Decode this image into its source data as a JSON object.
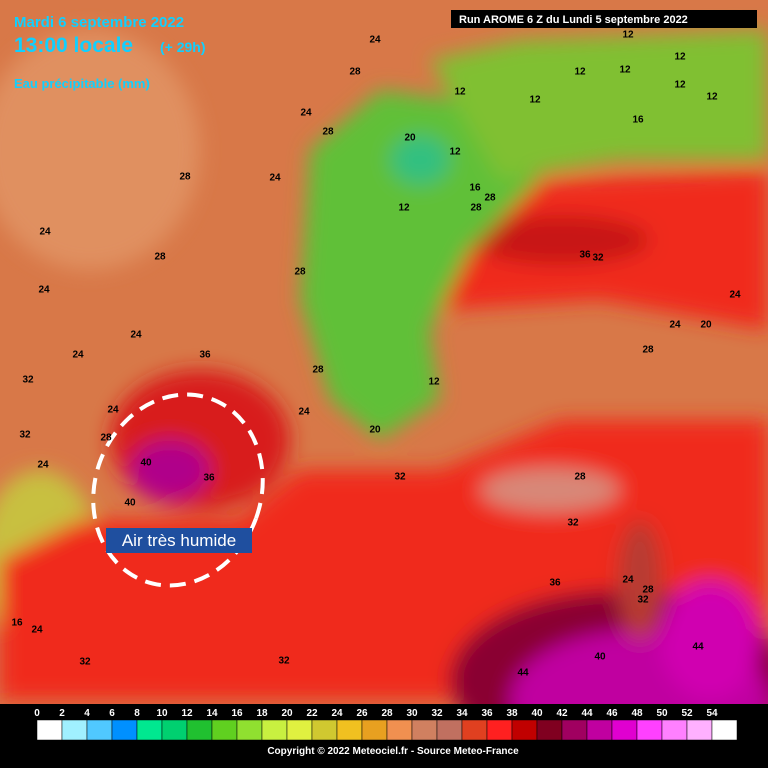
{
  "header": {
    "date": "Mardi 6 septembre 2022",
    "time": "13:00 locale",
    "lead": "(+ 29h)",
    "field": "Eau précipitable (mm)",
    "run": "Run AROME 6 Z du Lundi 5 septembre 2022"
  },
  "annotation": "Air très humide",
  "map_labels": [
    24,
    12,
    28,
    12,
    12,
    12,
    12,
    12,
    12,
    16,
    12,
    24,
    28,
    20,
    12,
    28,
    24,
    12,
    16,
    28,
    28,
    24,
    28,
    28,
    36,
    32,
    24,
    24,
    24,
    20,
    24,
    36,
    24,
    28,
    32,
    28,
    12,
    24,
    24,
    32,
    28,
    20,
    24,
    40,
    36,
    32,
    40,
    28,
    32,
    36,
    24,
    28,
    32,
    16,
    24,
    44,
    40,
    32,
    32,
    44
  ],
  "legend": {
    "ticks": [
      0,
      2,
      4,
      6,
      8,
      10,
      12,
      14,
      16,
      18,
      20,
      22,
      24,
      26,
      28,
      30,
      32,
      34,
      36,
      38,
      40,
      42,
      44,
      46,
      48,
      50,
      52,
      54
    ],
    "colors": [
      "#ffffff",
      "#a0f0ff",
      "#50c8ff",
      "#0090ff",
      "#00e890",
      "#00d070",
      "#20c030",
      "#60d020",
      "#90e030",
      "#c8f040",
      "#e0f040",
      "#d0c830",
      "#f0c020",
      "#e8a020",
      "#f09050",
      "#d08060",
      "#c07060",
      "#e04020",
      "#ff2020",
      "#c00000",
      "#800020",
      "#a00060",
      "#c000a0",
      "#e000d0",
      "#ff40ff",
      "#ff80ff",
      "#ffb0ff",
      "#ffffff"
    ]
  },
  "footer": "Copyright © 2022 Meteociel.fr - Source Meteo-France"
}
